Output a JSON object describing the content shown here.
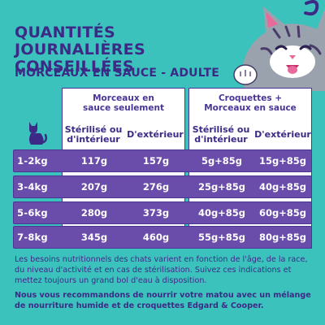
{
  "header": {
    "title_line1": "QUANTITÉS JOURNALIÈRES",
    "title_line2": "CONSEILLÉES",
    "subtitle": "MORCEAUX EN SAUCE - ADULTE"
  },
  "table": {
    "group1": {
      "line1": "Morceaux en",
      "line2": "sauce seulement"
    },
    "group2": {
      "line1": "Croquettes +",
      "line2": "Morceaux en sauce"
    },
    "col_indoor_line1": "Stérilisé ou",
    "col_indoor_line2": "d'intérieur",
    "col_outdoor": "D'extérieur",
    "rows": [
      {
        "weight": "1-2kg",
        "a": "117g",
        "b": "157g",
        "c": "5g+85g",
        "d": "15g+85g"
      },
      {
        "weight": "3-4kg",
        "a": "207g",
        "b": "276g",
        "c": "25g+85g",
        "d": "40g+85g"
      },
      {
        "weight": "5-6kg",
        "a": "280g",
        "b": "373g",
        "c": "40g+85g",
        "d": "60g+85g"
      },
      {
        "weight": "7-8kg",
        "a": "345g",
        "b": "460g",
        "c": "55g+85g",
        "d": "80g+85g"
      }
    ]
  },
  "notes": {
    "p1": "Les besoins nutritionnels des chats varient en fonction de l'âge, de la race, du niveau d'activité et en cas de stérilisation. Suivez ces indications et mettez toujours un grand bol d'eau à disposition.",
    "p2": "Nous vous recommandons de nourrir votre matou avec un mélange de nourriture humide et de croquettes Edgard & Cooper."
  },
  "colors": {
    "background": "#3cc2bd",
    "purple": "#3c2a86",
    "row_fill": "#6a4cab",
    "accent_pink": "#e86a9a"
  },
  "icons": [
    "cat-illustration",
    "cat-silhouette-icon"
  ]
}
